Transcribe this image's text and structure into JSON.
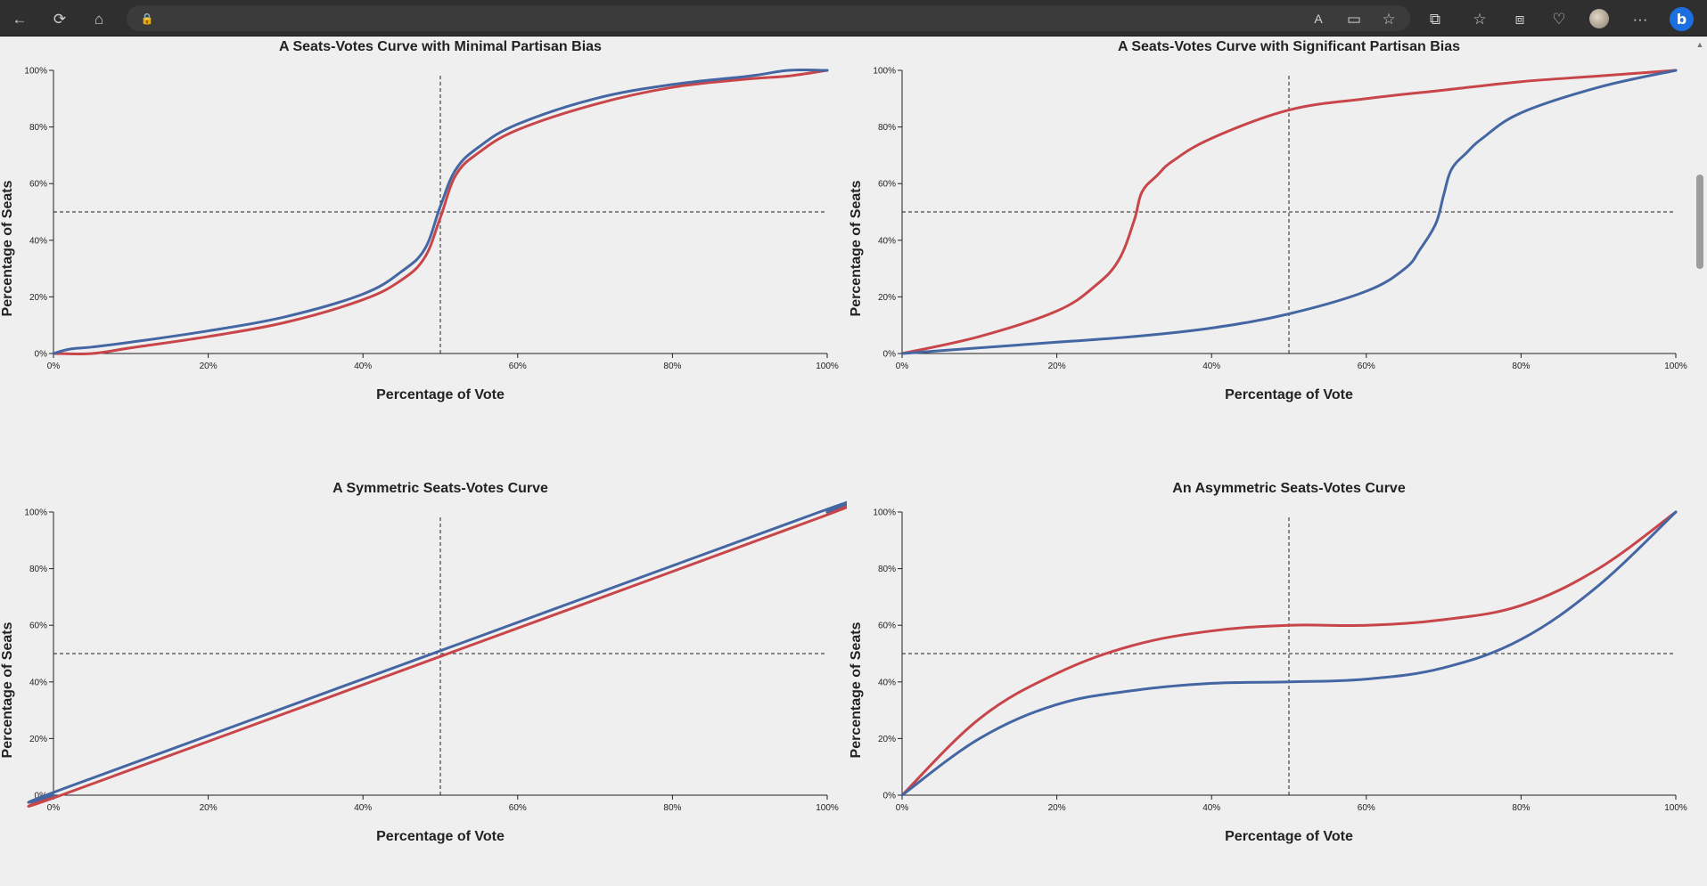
{
  "browser": {
    "icons": [
      "back-arrow-icon",
      "refresh-icon",
      "home-icon",
      "lock-icon",
      "read-aloud-icon",
      "reader-view-icon",
      "favorite-star-icon",
      "extensions-icon",
      "favorites-icon",
      "collections-icon",
      "performance-heart-icon",
      "profile-avatar",
      "more-icon",
      "bing-copilot-icon"
    ],
    "glyphs": {
      "back": "←",
      "refresh": "⟳",
      "home": "⌂",
      "lock": "🔒",
      "read_aloud": "A",
      "reader": "▭",
      "star": "☆",
      "extensions": "⧉",
      "favorites": "☆",
      "collections": "⧈",
      "heart": "♡",
      "more": "···",
      "bing": "b"
    }
  },
  "colors": {
    "red": "#c8454a",
    "blue": "#4466a3",
    "background": "#efefef",
    "axis": "#222222"
  },
  "charts": {
    "c1": {
      "title": "A Seats-Votes Curve with Minimal Partisan Bias",
      "xlabel": "Percentage of Vote",
      "ylabel": "Percentage of Seats",
      "xticks": [
        "0%",
        "20%",
        "40%",
        "60%",
        "80%",
        "100%"
      ],
      "yticks": [
        "0%",
        "20%",
        "40%",
        "60%",
        "80%",
        "100%"
      ]
    },
    "c2": {
      "title": "A Seats-Votes Curve with Significant Partisan Bias",
      "xlabel": "Percentage of Vote",
      "ylabel": "Percentage of Seats",
      "xticks": [
        "0%",
        "20%",
        "40%",
        "60%",
        "80%",
        "100%"
      ],
      "yticks": [
        "0%",
        "20%",
        "40%",
        "60%",
        "80%",
        "100%"
      ]
    },
    "c3": {
      "title": "A Symmetric Seats-Votes Curve",
      "xlabel": "Percentage of Vote",
      "ylabel": "Percentage of Seats",
      "xticks": [
        "0%",
        "20%",
        "40%",
        "60%",
        "80%",
        "100%"
      ],
      "yticks": [
        "0%",
        "20%",
        "40%",
        "60%",
        "80%",
        "100%"
      ]
    },
    "c4": {
      "title": "An Asymmetric Seats-Votes Curve",
      "xlabel": "Percentage of Vote",
      "ylabel": "Percentage of Seats",
      "xticks": [
        "0%",
        "20%",
        "40%",
        "60%",
        "80%",
        "100%"
      ],
      "yticks": [
        "0%",
        "20%",
        "40%",
        "60%",
        "80%",
        "100%"
      ]
    }
  },
  "chart_data": [
    {
      "type": "line",
      "title": "A Seats-Votes Curve with Minimal Partisan Bias",
      "xlabel": "Percentage of Vote",
      "ylabel": "Percentage of Seats",
      "xlim": [
        0,
        100
      ],
      "ylim": [
        0,
        100
      ],
      "reference_lines": {
        "x": 50,
        "y": 50,
        "style": "dashed"
      },
      "series": [
        {
          "color": "#c8454a",
          "x": [
            0,
            5,
            10,
            20,
            30,
            40,
            45,
            48,
            50,
            52,
            55,
            60,
            70,
            80,
            90,
            95,
            100
          ],
          "y": [
            0,
            0,
            2,
            6,
            11,
            19,
            26,
            34,
            48,
            63,
            71,
            79,
            88,
            94,
            97,
            98,
            100
          ]
        },
        {
          "color": "#4466a3",
          "x": [
            0,
            2,
            5,
            10,
            20,
            30,
            40,
            45,
            48,
            50,
            52,
            55,
            60,
            70,
            80,
            90,
            95,
            100
          ],
          "y": [
            0,
            1.5,
            2.3,
            4,
            8,
            13,
            21,
            29,
            37,
            52,
            65,
            73,
            81,
            90,
            95,
            98,
            100,
            100
          ]
        }
      ]
    },
    {
      "type": "line",
      "title": "A Seats-Votes Curve with Significant Partisan Bias",
      "xlabel": "Percentage of Vote",
      "ylabel": "Percentage of Seats",
      "xlim": [
        0,
        100
      ],
      "ylim": [
        0,
        100
      ],
      "reference_lines": {
        "x": 50,
        "y": 50,
        "style": "dashed"
      },
      "series": [
        {
          "color": "#c8454a",
          "x": [
            0,
            10,
            20,
            25,
            28,
            30,
            31,
            33,
            35,
            40,
            50,
            60,
            70,
            80,
            90,
            100
          ],
          "y": [
            0,
            6,
            15,
            24,
            33,
            47,
            57,
            63,
            68,
            76,
            86,
            90,
            93,
            96,
            98,
            100
          ]
        },
        {
          "color": "#4466a3",
          "x": [
            0,
            10,
            20,
            30,
            40,
            50,
            60,
            65,
            67,
            69,
            70,
            71,
            73,
            75,
            80,
            90,
            100
          ],
          "y": [
            0,
            2,
            4,
            6,
            9,
            14,
            22,
            30,
            37,
            46,
            56,
            65,
            71,
            76,
            85,
            94,
            100
          ]
        }
      ]
    },
    {
      "type": "line",
      "title": "A Symmetric Seats-Votes Curve",
      "xlabel": "Percentage of Vote",
      "ylabel": "Percentage of Seats",
      "xlim": [
        0,
        100
      ],
      "ylim": [
        0,
        100
      ],
      "reference_lines": {
        "x": 50,
        "y": 50,
        "style": "dashed"
      },
      "series": [
        {
          "color": "#c8454a",
          "x": [
            0,
            1,
            50,
            99,
            100
          ],
          "y": [
            0,
            0,
            49,
            98,
            100
          ]
        },
        {
          "color": "#4466a3",
          "x": [
            0,
            1,
            50,
            99,
            100
          ],
          "y": [
            0,
            2,
            51,
            100,
            100
          ]
        }
      ]
    },
    {
      "type": "line",
      "title": "An Asymmetric Seats-Votes Curve",
      "xlabel": "Percentage of Vote",
      "ylabel": "Percentage of Seats",
      "xlim": [
        0,
        100
      ],
      "ylim": [
        0,
        100
      ],
      "reference_lines": {
        "x": 50,
        "y": 50,
        "style": "dashed"
      },
      "series": [
        {
          "color": "#c8454a",
          "x": [
            0,
            10,
            20,
            30,
            40,
            50,
            60,
            70,
            80,
            90,
            100
          ],
          "y": [
            0,
            27,
            43,
            53,
            58,
            60,
            60,
            62,
            67,
            80,
            100
          ]
        },
        {
          "color": "#4466a3",
          "x": [
            0,
            10,
            20,
            30,
            40,
            50,
            60,
            70,
            80,
            90,
            100
          ],
          "y": [
            0,
            20,
            32,
            37,
            39.5,
            40,
            41,
            45,
            55,
            74,
            100
          ]
        }
      ]
    }
  ]
}
